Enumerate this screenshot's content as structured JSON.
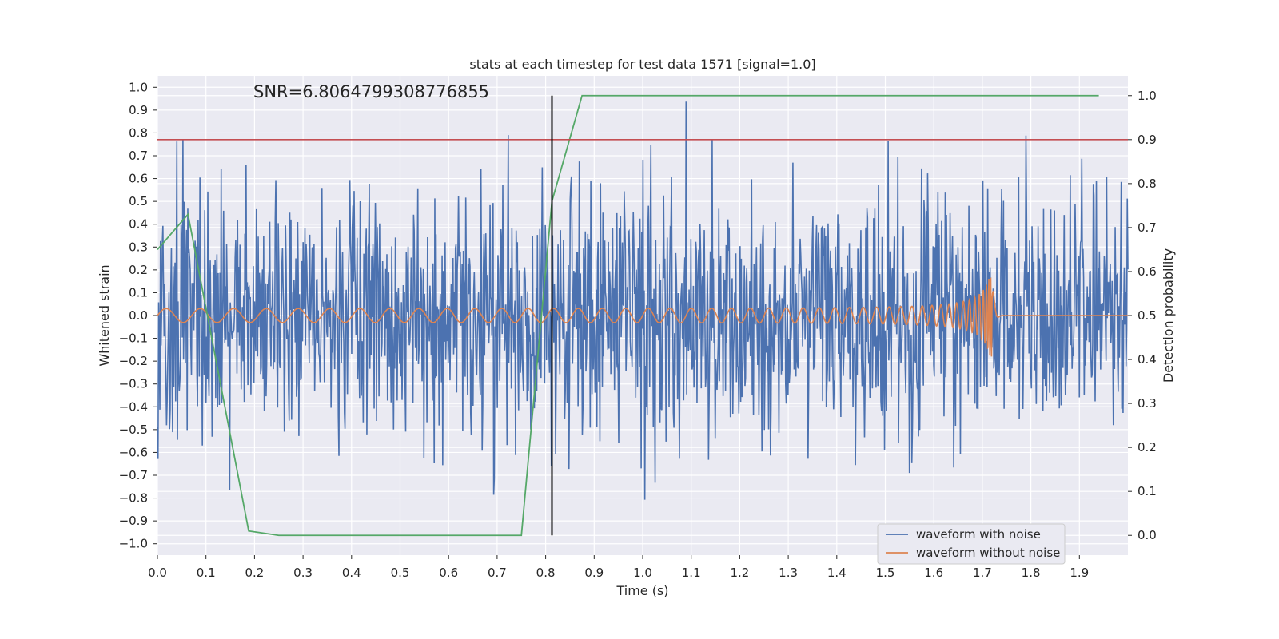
{
  "chart_data": {
    "type": "line",
    "title": "stats at each timestep for test data 1571 [signal=1.0]",
    "annotation": "SNR=6.8064799308776855",
    "xlabel": "Time (s)",
    "ylabel": "Whitened strain",
    "y2label": "Detection probability",
    "xlim": [
      0.0,
      2.0
    ],
    "ylim": [
      -1.05,
      1.05
    ],
    "y2lim": [
      -0.045,
      1.045
    ],
    "xticks": [
      "0.0",
      "0.1",
      "0.2",
      "0.3",
      "0.4",
      "0.5",
      "0.6",
      "0.7",
      "0.8",
      "0.9",
      "1.0",
      "1.1",
      "1.2",
      "1.3",
      "1.4",
      "1.5",
      "1.6",
      "1.7",
      "1.8",
      "1.9"
    ],
    "yticks": [
      "1.0",
      "0.9",
      "0.8",
      "0.7",
      "0.6",
      "0.5",
      "0.4",
      "0.3",
      "0.2",
      "0.1",
      "0.0",
      "−0.1",
      "−0.2",
      "−0.3",
      "−0.4",
      "−0.5",
      "−0.6",
      "−0.7",
      "−0.8",
      "−0.9",
      "−1.0"
    ],
    "y2ticks": [
      "1.0",
      "0.9",
      "0.8",
      "0.7",
      "0.6",
      "0.5",
      "0.4",
      "0.3",
      "0.2",
      "0.1",
      "0.0"
    ],
    "grid": true,
    "legend_position": "bottom-right",
    "series": [
      {
        "name": "waveform with noise",
        "axis": "left",
        "color": "#4c72b0",
        "style": "noise",
        "n_points": 1600,
        "amplitude_range": [
          -0.93,
          1.0
        ]
      },
      {
        "name": "waveform without noise",
        "axis": "left",
        "color": "#dd8452",
        "style": "chirp",
        "merger_time": 1.72,
        "amplitude_start": 0.03,
        "amplitude_peak": 0.22
      },
      {
        "name": "",
        "axis": "right",
        "color": "#55a868",
        "x": [
          0.0,
          0.063,
          0.188,
          0.25,
          0.75,
          0.813,
          0.875,
          1.94
        ],
        "y": [
          0.65,
          0.73,
          0.01,
          0.0,
          0.0,
          0.76,
          1.0,
          1.0
        ]
      }
    ],
    "hlines": [
      {
        "axis": "right",
        "y": 0.9,
        "color": "#c44e52"
      }
    ],
    "vlines": [
      {
        "x": 0.813,
        "y2_range": [
          0.0,
          1.0
        ],
        "color": "#000000"
      }
    ]
  }
}
